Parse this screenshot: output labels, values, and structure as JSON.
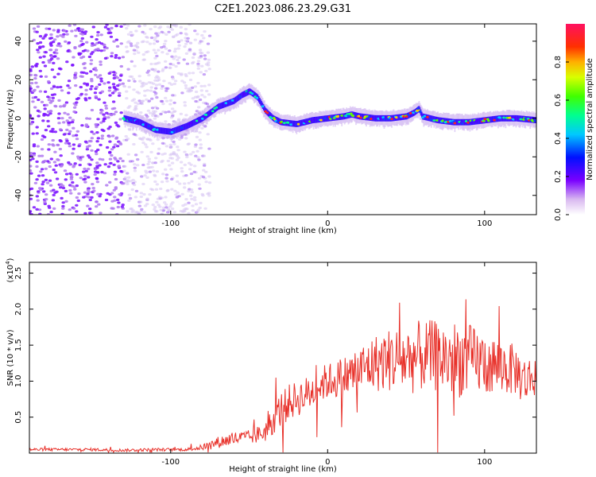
{
  "figure": {
    "title": "C2E1.2023.086.23.29.G31"
  },
  "chart_data": [
    {
      "type": "heatmap",
      "xlabel": "Height of straight line (km)",
      "ylabel": "Frequency (Hz)",
      "xlim": [
        -190,
        133
      ],
      "ylim": [
        -50,
        49
      ],
      "x_ticks": [
        -100,
        0,
        100
      ],
      "y_ticks": [
        -40,
        -20,
        0,
        20,
        40
      ],
      "colorbar": {
        "label": "Normalized spectral amplitude",
        "range": [
          0.0,
          1.0
        ],
        "ticks": [
          0.0,
          0.2,
          0.4,
          0.6,
          0.8
        ],
        "tick_labels": [
          "0.0",
          "0.2",
          "0.4",
          "0.6",
          "0.8"
        ]
      },
      "ridge": {
        "x": [
          -130,
          -120,
          -110,
          -100,
          -90,
          -80,
          -70,
          -60,
          -55,
          -50,
          -45,
          -40,
          -35,
          -30,
          -20,
          -10,
          0,
          10,
          15,
          20,
          30,
          40,
          50,
          55,
          58,
          60,
          70,
          80,
          90,
          100,
          110,
          120,
          133
        ],
        "y": [
          0,
          -2,
          -6,
          -7,
          -4,
          0,
          6,
          9,
          12,
          14,
          11,
          4,
          0,
          -2,
          -3,
          -1,
          0,
          1,
          2,
          1,
          0,
          0,
          1,
          3,
          5,
          1,
          -1,
          -2,
          -2,
          -1,
          0,
          0,
          -1
        ]
      }
    },
    {
      "type": "line",
      "xlabel": "Height of straight line (km)",
      "ylabel": "SNR (10 * v/v)",
      "scale_label": "(x10",
      "scale_exponent": "4",
      "xlim": [
        -190,
        133
      ],
      "ylim": [
        0,
        2.65
      ],
      "x_ticks": [
        -100,
        0,
        100
      ],
      "y_ticks": [
        0.5,
        1.0,
        1.5,
        2.0,
        2.5
      ],
      "y_tick_labels": [
        "0.5",
        "1.0",
        "1.5",
        "2.0",
        "2.5"
      ],
      "color": "#e8322b",
      "series": [
        {
          "x": [
            -190,
            -170,
            -150,
            -130,
            -110,
            -90,
            -80,
            -70,
            -60,
            -50,
            -45,
            -40,
            -35,
            -30,
            -25,
            -20,
            -15,
            -10,
            -5,
            0,
            10,
            20,
            30,
            40,
            50,
            60,
            70,
            80,
            90,
            100,
            110,
            120,
            125,
            130,
            133
          ],
          "values": [
            0.05,
            0.05,
            0.05,
            0.04,
            0.05,
            0.05,
            0.08,
            0.15,
            0.2,
            0.22,
            0.25,
            0.3,
            0.45,
            0.6,
            0.7,
            0.75,
            0.8,
            0.85,
            0.95,
            1.0,
            1.05,
            1.15,
            1.25,
            1.3,
            1.3,
            1.35,
            1.35,
            1.3,
            1.3,
            1.25,
            1.2,
            1.15,
            1.0,
            1.05,
            1.1
          ],
          "noise_amplitude": [
            0.02,
            0.02,
            0.02,
            0.02,
            0.02,
            0.02,
            0.04,
            0.08,
            0.1,
            0.1,
            0.12,
            0.15,
            0.2,
            0.25,
            0.25,
            0.25,
            0.25,
            0.25,
            0.25,
            0.25,
            0.3,
            0.35,
            0.4,
            0.45,
            0.5,
            0.5,
            0.5,
            0.55,
            0.5,
            0.45,
            0.4,
            0.35,
            0.35,
            0.3,
            0.3
          ]
        }
      ]
    }
  ]
}
